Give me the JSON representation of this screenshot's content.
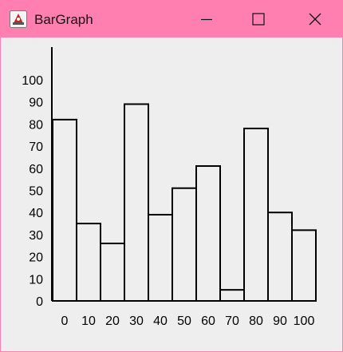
{
  "window": {
    "title": "BarGraph",
    "titlebar_color": "#ff80b0",
    "background_color": "#eeeeee"
  },
  "controls": {
    "minimize_icon": "minimize-icon",
    "maximize_icon": "maximize-icon",
    "close_icon": "close-icon",
    "app_icon": "java-app-icon"
  },
  "chart_data": {
    "type": "bar",
    "title": "",
    "xlabel": "",
    "ylabel": "",
    "ylim": [
      0,
      100
    ],
    "yticks": [
      0,
      10,
      20,
      30,
      40,
      50,
      60,
      70,
      80,
      90,
      100
    ],
    "xticks": [
      "0",
      "10",
      "20",
      "30",
      "40",
      "50",
      "60",
      "70",
      "80",
      "90",
      "100"
    ],
    "values": [
      82,
      35,
      26,
      89,
      39,
      51,
      61,
      5,
      78,
      40,
      32
    ],
    "bar_fill": "#eeeeee",
    "bar_stroke": "#000000",
    "grid": false,
    "legend": "none"
  }
}
